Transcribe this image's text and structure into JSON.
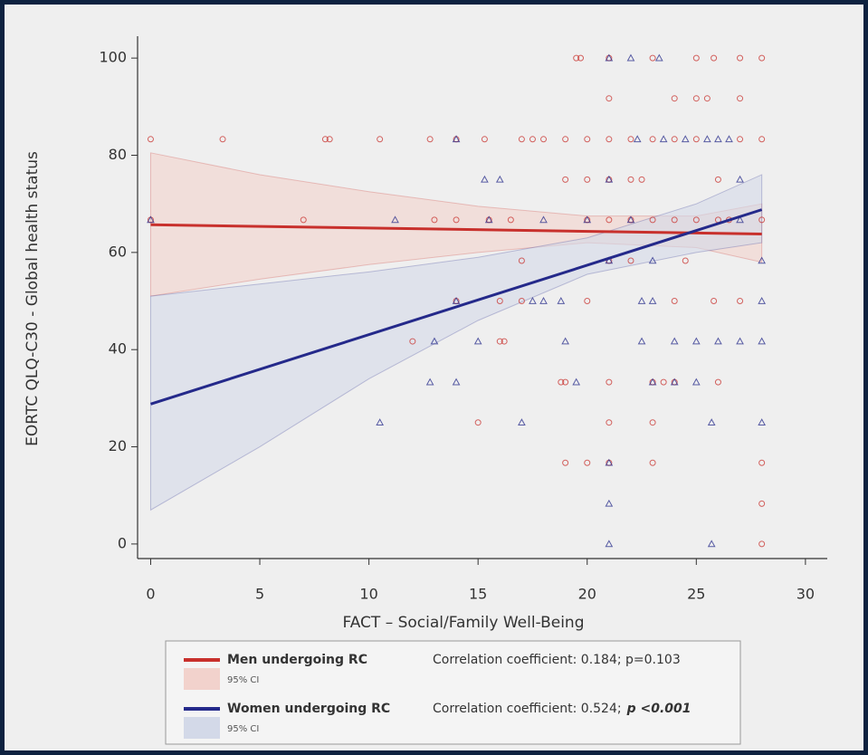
{
  "chart_data": {
    "type": "scatter",
    "xlabel": "FACT – Social/Family Well-Being",
    "ylabel": "EORTC QLQ-C30 - Global health status",
    "xlim": [
      -0.6,
      31
    ],
    "ylim": [
      -3,
      104.5
    ],
    "xticks": [
      0,
      5,
      10,
      15,
      20,
      25,
      30
    ],
    "yticks": [
      0,
      20,
      40,
      60,
      80,
      100
    ],
    "series": [
      {
        "name": "Men undergoing RC",
        "color": "#c8302c",
        "marker": "circle",
        "band_color": "#f2d2cc",
        "stat": "Correlation coefficient: 0.184; p=0.103",
        "x": [
          0,
          0,
          3.3,
          7,
          8,
          8.2,
          10.5,
          12,
          12.8,
          13,
          14,
          14,
          14,
          15,
          15.3,
          15.5,
          16,
          16,
          16.2,
          16.5,
          17,
          17,
          17,
          17.5,
          18,
          18.8,
          19,
          19,
          19,
          19,
          19.5,
          19.7,
          20,
          20,
          20,
          20,
          20,
          21,
          21,
          21,
          21,
          21,
          21,
          21,
          21,
          21,
          22,
          22,
          22,
          22,
          22.5,
          23,
          23,
          23,
          23,
          23,
          23,
          23.5,
          24,
          24,
          24,
          24,
          24,
          24.5,
          25,
          25,
          25,
          25,
          25.5,
          25.8,
          25.8,
          26,
          26,
          26,
          26.5,
          27,
          27,
          27,
          27,
          28,
          28,
          28,
          28,
          28,
          28
        ],
        "values": [
          83.3,
          66.7,
          83.3,
          66.7,
          83.3,
          83.3,
          83.3,
          41.7,
          83.3,
          66.7,
          66.7,
          83.3,
          50,
          25,
          83.3,
          66.7,
          41.7,
          50,
          41.7,
          66.7,
          58.3,
          83.3,
          50,
          83.3,
          83.3,
          33.3,
          83.3,
          75,
          16.7,
          33.3,
          100,
          100,
          83.3,
          75,
          50,
          16.7,
          66.7,
          100,
          91.7,
          83.3,
          75,
          66.7,
          58.3,
          33.3,
          25,
          16.7,
          83.3,
          75,
          66.7,
          58.3,
          75,
          100,
          83.3,
          66.7,
          33.3,
          25,
          16.7,
          33.3,
          91.7,
          83.3,
          66.7,
          50,
          33.3,
          58.3,
          100,
          91.7,
          83.3,
          66.7,
          91.7,
          100,
          50,
          75,
          66.7,
          33.3,
          66.7,
          91.7,
          83.3,
          50,
          100,
          100,
          83.3,
          66.7,
          16.7,
          8.3,
          0
        ],
        "fit": {
          "x": [
            0,
            28
          ],
          "values": [
            65.7,
            63.8
          ]
        },
        "ci": {
          "label": "95% CI",
          "x": [
            0,
            5,
            10,
            15,
            20,
            25,
            28
          ],
          "upper": [
            80.5,
            76,
            72.5,
            69.5,
            67.5,
            67.5,
            70
          ],
          "lower": [
            51,
            54.5,
            57.5,
            60,
            62,
            61,
            58
          ]
        }
      },
      {
        "name": "Women undergoing RC",
        "color": "#24298a",
        "marker": "triangle",
        "band_color": "#d3d9e8",
        "stat": "Correlation coefficient: 0.524;",
        "stat_emphasis": "p <0.001",
        "x": [
          0,
          10.5,
          11.2,
          12.8,
          13,
          14,
          14,
          14,
          15,
          15.5,
          15.3,
          16,
          17,
          17.5,
          18,
          18,
          18.8,
          19,
          19.5,
          20,
          21,
          21,
          21,
          21,
          21,
          21,
          22,
          22,
          22.3,
          22.5,
          22.5,
          23,
          23,
          23,
          23.3,
          23.5,
          24,
          24,
          24.5,
          25,
          25,
          25.5,
          25.7,
          25.7,
          26,
          26,
          26.5,
          27,
          27,
          27,
          28,
          28,
          28,
          28
        ],
        "values": [
          66.7,
          25,
          66.7,
          33.3,
          41.7,
          50,
          33.3,
          83.3,
          41.7,
          66.7,
          75,
          75,
          25,
          50,
          50,
          66.7,
          50,
          41.7,
          33.3,
          66.7,
          75,
          58.3,
          16.7,
          8.3,
          0,
          100,
          66.7,
          100,
          83.3,
          50,
          41.7,
          58.3,
          50,
          33.3,
          100,
          83.3,
          41.7,
          33.3,
          83.3,
          41.7,
          33.3,
          83.3,
          25,
          0,
          83.3,
          41.7,
          83.3,
          75,
          41.7,
          66.7,
          58.3,
          50,
          41.7,
          25
        ],
        "fit": {
          "x": [
            0,
            28
          ],
          "values": [
            28.8,
            68.8
          ]
        },
        "ci": {
          "label": "95% CI",
          "x": [
            0,
            5,
            10,
            15,
            20,
            25,
            28
          ],
          "upper": [
            51,
            53.5,
            56,
            59,
            63,
            70,
            76
          ],
          "lower": [
            7,
            20,
            34,
            46,
            55.5,
            60,
            62
          ]
        }
      }
    ]
  }
}
